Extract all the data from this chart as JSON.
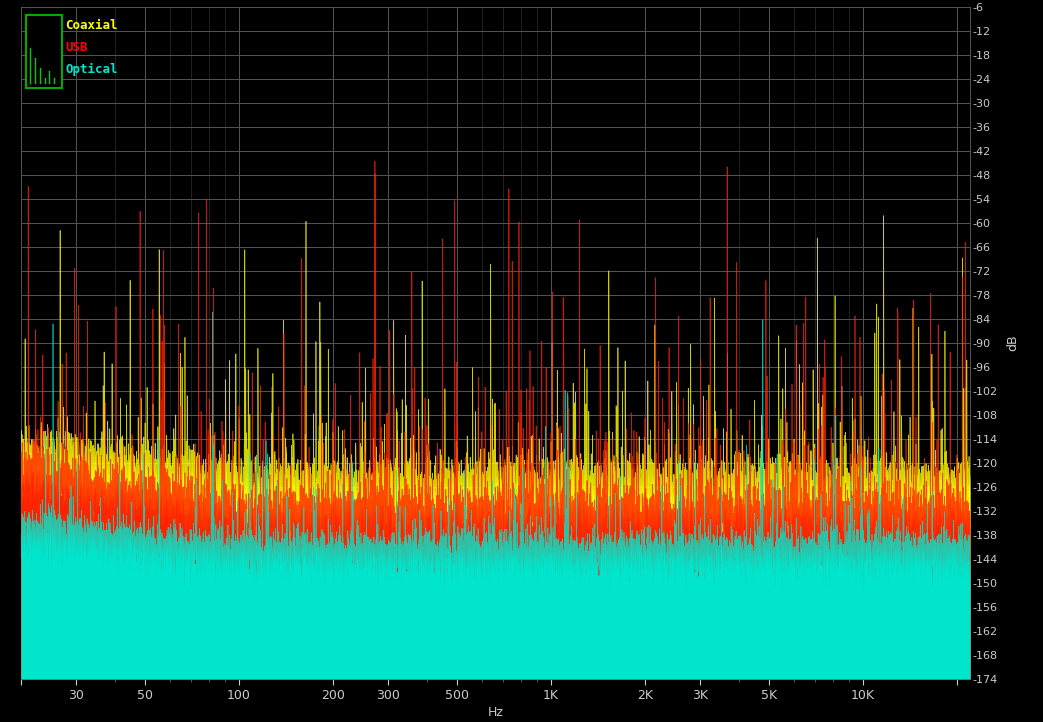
{
  "background_color": "#000000",
  "grid_color": "#555555",
  "fig_width": 10.43,
  "fig_height": 7.22,
  "dpi": 100,
  "xmin": 20,
  "xmax": 22000,
  "ymin": -174,
  "ymax": -6,
  "yticks": [
    -6,
    -12,
    -18,
    -24,
    -30,
    -36,
    -42,
    -48,
    -54,
    -60,
    -66,
    -72,
    -78,
    -84,
    -90,
    -96,
    -102,
    -108,
    -114,
    -120,
    -126,
    -132,
    -138,
    -144,
    -150,
    -156,
    -162,
    -168,
    -174
  ],
  "ylabel": "dB",
  "xlabel": "Hz",
  "xtick_locs": [
    20,
    30,
    50,
    100,
    200,
    300,
    500,
    1000,
    2000,
    3000,
    5000,
    10000,
    20000
  ],
  "xtick_labels": [
    "",
    "30",
    "50",
    "100",
    "200",
    "300",
    "500",
    "1K",
    "2K",
    "3K",
    "5K",
    "10K",
    ""
  ],
  "legend_entries": [
    "Coaxial",
    "USB",
    "Optical"
  ],
  "legend_colors": [
    "#ffff00",
    "#ff0000",
    "#00e5cc"
  ],
  "coaxial_color": "#ffff00",
  "usb_color": "#ff2200",
  "optical_color": "#00e5cc",
  "noise_floor_coaxial": -126,
  "noise_floor_usb": -134,
  "noise_floor_optical": -143,
  "coaxial_spike_level": -108,
  "usb_spike_level": -105,
  "optical_spike_level": -148
}
